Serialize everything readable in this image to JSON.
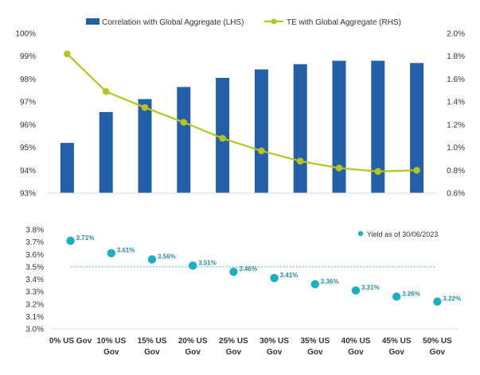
{
  "chart_data": [
    {
      "type": "bar+line",
      "categories": [
        "0% US Gov",
        "10% US Gov",
        "15% US Gov",
        "20% US Gov",
        "25% US Gov",
        "30% US Gov",
        "35% US Gov",
        "40% US Gov",
        "45% US Gov",
        "50% US Gov"
      ],
      "series": [
        {
          "name": "Correlation with Global Aggregate (LHS)",
          "type": "bar",
          "axis": "left",
          "color": "#2360a8",
          "values": [
            95.2,
            96.55,
            97.12,
            97.65,
            98.05,
            98.42,
            98.65,
            98.8,
            98.8,
            98.7
          ]
        },
        {
          "name": "TE with Global Aggregate (RHS)",
          "type": "line",
          "axis": "right",
          "color": "#b5c41e",
          "values": [
            1.82,
            1.49,
            1.35,
            1.22,
            1.08,
            0.97,
            0.88,
            0.82,
            0.79,
            0.8
          ]
        }
      ],
      "left_axis": {
        "ylim": [
          93,
          100
        ],
        "ticks": [
          "93%",
          "94%",
          "95%",
          "96%",
          "97%",
          "98%",
          "99%",
          "100%"
        ]
      },
      "right_axis": {
        "ylim": [
          0.6,
          2.0
        ],
        "ticks": [
          "0.6%",
          "0.8%",
          "1.0%",
          "1.2%",
          "1.4%",
          "1.6%",
          "1.8%",
          "2.0%"
        ]
      },
      "legend": "top-center",
      "grid": false
    },
    {
      "type": "scatter",
      "categories": [
        "0% US Gov",
        "10% US Gov",
        "15% US Gov",
        "20% US Gov",
        "25% US Gov",
        "30% US Gov",
        "35% US Gov",
        "40% US Gov",
        "45% US Gov",
        "50% US Gov"
      ],
      "x_tick_lines": [
        [
          "0% US Gov"
        ],
        [
          "10% US",
          "Gov"
        ],
        [
          "15% US",
          "Gov"
        ],
        [
          "20% US",
          "Gov"
        ],
        [
          "25% US",
          "Gov"
        ],
        [
          "30% US",
          "Gov"
        ],
        [
          "35% US",
          "Gov"
        ],
        [
          "40% US",
          "Gov"
        ],
        [
          "45% US",
          "Gov"
        ],
        [
          "50% US",
          "Gov"
        ]
      ],
      "series": [
        {
          "name": "Yield as of 30/06/2023",
          "color": "#1ab0c4",
          "values": [
            3.71,
            3.61,
            3.56,
            3.51,
            3.46,
            3.41,
            3.36,
            3.31,
            3.26,
            3.22
          ],
          "labels": [
            "3.71%",
            "3.61%",
            "3.56%",
            "3.51%",
            "3.46%",
            "3.41%",
            "3.36%",
            "3.31%",
            "3.26%",
            "3.22%"
          ]
        }
      ],
      "reference_line": {
        "value": 3.5,
        "style": "dotted",
        "color": "#5aaee6"
      },
      "y_axis": {
        "ylim": [
          3.0,
          3.8
        ],
        "ticks": [
          "3.0%",
          "3.1%",
          "3.2%",
          "3.3%",
          "3.4%",
          "3.5%",
          "3.6%",
          "3.7%",
          "3.8%"
        ]
      },
      "legend": "top-right",
      "grid": false
    }
  ]
}
